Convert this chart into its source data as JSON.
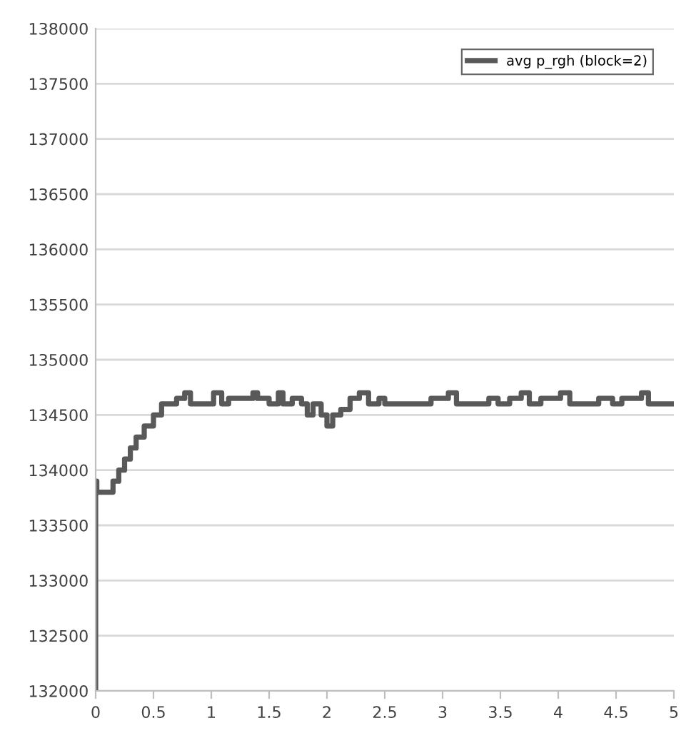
{
  "chart_data": {
    "type": "step",
    "x": [
      0,
      0,
      0.01,
      0.15,
      0.2,
      0.25,
      0.3,
      0.35,
      0.42,
      0.5,
      0.57,
      0.7,
      0.77,
      0.82,
      1.02,
      1.09,
      1.15,
      1.36,
      1.4,
      1.5,
      1.58,
      1.62,
      1.7,
      1.78,
      1.83,
      1.88,
      1.95,
      2.0,
      2.05,
      2.12,
      2.2,
      2.28,
      2.36,
      2.45,
      2.5,
      2.9,
      3.05,
      3.12,
      3.4,
      3.48,
      3.58,
      3.68,
      3.75,
      3.85,
      4.02,
      4.1,
      4.2,
      4.35,
      4.47,
      4.5,
      4.55,
      4.72,
      4.78,
      5.0
    ],
    "series": [
      {
        "name": "avg p_rgh (block=2)",
        "color": "#595959",
        "values": [
          132000,
          133900,
          133800,
          133900,
          134000,
          134100,
          134200,
          134300,
          134400,
          134500,
          134600,
          134650,
          134700,
          134600,
          134700,
          134600,
          134650,
          134700,
          134650,
          134600,
          134700,
          134600,
          134650,
          134600,
          134500,
          134600,
          134500,
          134400,
          134500,
          134550,
          134650,
          134700,
          134600,
          134650,
          134600,
          134650,
          134700,
          134600,
          134650,
          134600,
          134650,
          134700,
          134600,
          134650,
          134700,
          134600,
          134600,
          134650,
          134600,
          134600,
          134650,
          134700,
          134600,
          134600
        ]
      }
    ],
    "xlim": [
      0,
      5
    ],
    "xticks": [
      0,
      0.5,
      1,
      1.5,
      2,
      2.5,
      3,
      3.5,
      4,
      4.5,
      5
    ],
    "ylim": [
      132000,
      138000
    ],
    "yticks": [
      132000,
      132500,
      133000,
      133500,
      134000,
      134500,
      135000,
      135500,
      136000,
      136500,
      137000,
      137500,
      138000
    ],
    "grid": "y",
    "legend": "top right"
  }
}
